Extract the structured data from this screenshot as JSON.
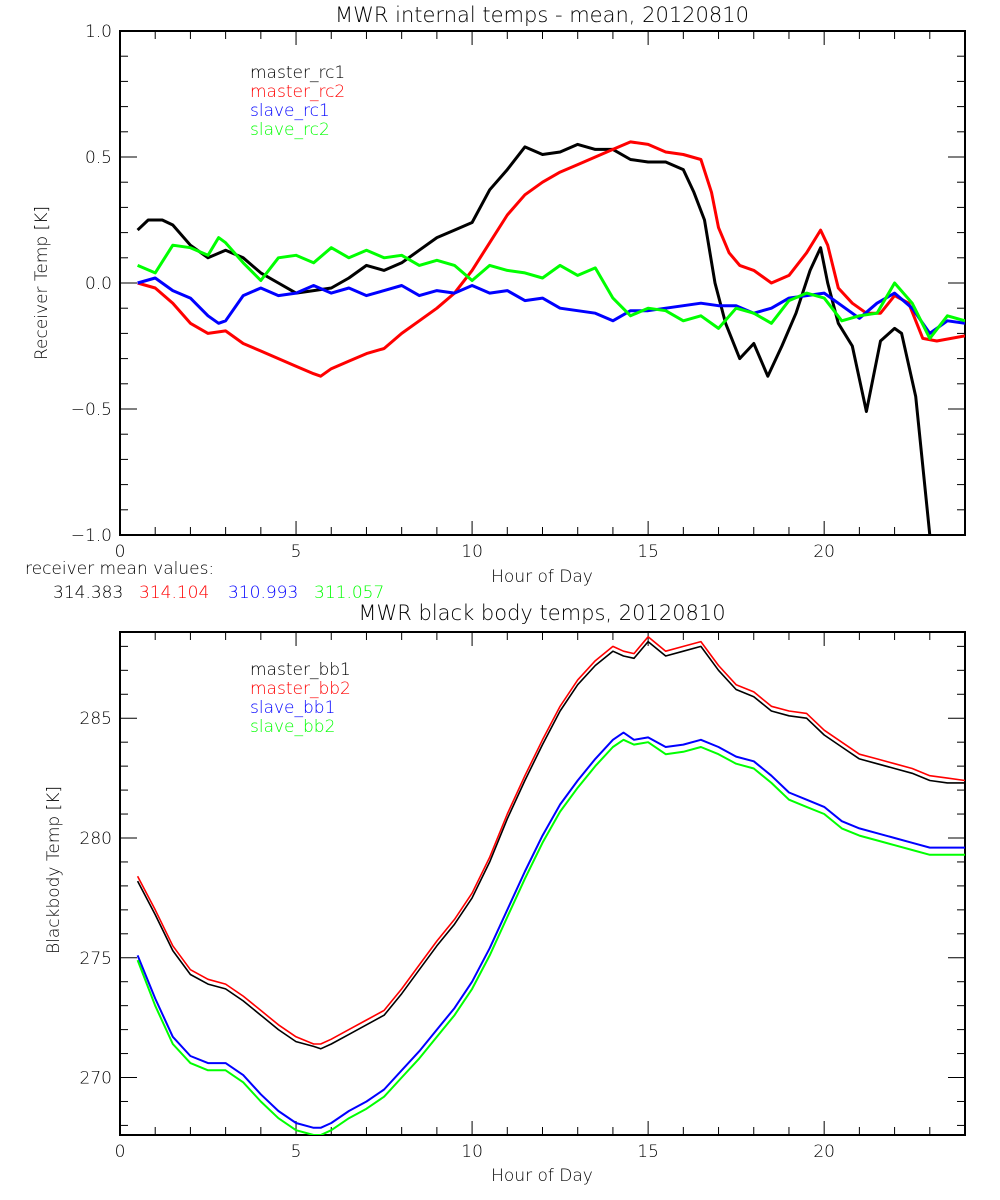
{
  "chart_data": [
    {
      "type": "line",
      "title": "MWR internal temps - mean, 20120810",
      "xlabel": "Hour of Day",
      "ylabel": "Receiver Temp [K]",
      "xlim": [
        0,
        24
      ],
      "ylim": [
        -1.0,
        1.0
      ],
      "xticks": [
        0,
        5,
        10,
        15,
        20
      ],
      "xtick_labels": [
        "0",
        "5",
        "10",
        "15",
        "20"
      ],
      "yticks": [
        -1.0,
        -0.5,
        0.0,
        0.5,
        1.0
      ],
      "ytick_labels": [
        "-1.0",
        "-0.5",
        "0.0",
        "0.5",
        "1.0"
      ],
      "grid": false,
      "legend_position": "top-left",
      "series": [
        {
          "name": "master_rc1",
          "color": "#000000",
          "x": [
            0.5,
            0.8,
            1.2,
            1.5,
            2.0,
            2.5,
            3.0,
            3.5,
            4.0,
            4.5,
            5.0,
            5.5,
            6.0,
            6.5,
            7.0,
            7.5,
            8.0,
            8.5,
            9.0,
            9.5,
            10.0,
            10.5,
            11.0,
            11.5,
            12.0,
            12.5,
            13.0,
            13.5,
            14.0,
            14.5,
            15.0,
            15.5,
            16.0,
            16.3,
            16.6,
            16.9,
            17.2,
            17.6,
            18.0,
            18.4,
            18.8,
            19.2,
            19.6,
            19.9,
            20.1,
            20.4,
            20.8,
            21.2,
            21.6,
            22.0,
            22.2,
            22.6,
            23.0
          ],
          "y": [
            0.21,
            0.25,
            0.25,
            0.23,
            0.15,
            0.1,
            0.13,
            0.1,
            0.04,
            0.0,
            -0.04,
            -0.03,
            -0.02,
            0.02,
            0.07,
            0.05,
            0.08,
            0.13,
            0.18,
            0.21,
            0.24,
            0.37,
            0.45,
            0.54,
            0.51,
            0.52,
            0.55,
            0.53,
            0.53,
            0.49,
            0.48,
            0.48,
            0.45,
            0.36,
            0.25,
            0.0,
            -0.16,
            -0.3,
            -0.24,
            -0.37,
            -0.25,
            -0.12,
            0.05,
            0.14,
            0.0,
            -0.16,
            -0.25,
            -0.51,
            -0.23,
            -0.18,
            -0.2,
            -0.45,
            -1.0
          ]
        },
        {
          "name": "master_rc2",
          "color": "#ff0000",
          "x": [
            0.5,
            1.0,
            1.5,
            2.0,
            2.5,
            3.0,
            3.5,
            4.0,
            4.5,
            5.0,
            5.5,
            5.7,
            6.0,
            6.5,
            7.0,
            7.5,
            8.0,
            8.5,
            9.0,
            9.5,
            10.0,
            10.5,
            11.0,
            11.5,
            12.0,
            12.5,
            13.0,
            13.5,
            14.0,
            14.5,
            15.0,
            15.5,
            16.0,
            16.5,
            16.8,
            17.0,
            17.3,
            17.6,
            18.0,
            18.5,
            19.0,
            19.5,
            19.9,
            20.1,
            20.4,
            20.8,
            21.2,
            21.6,
            22.0,
            22.4,
            22.8,
            23.2,
            24.0
          ],
          "y": [
            0.0,
            -0.02,
            -0.08,
            -0.16,
            -0.2,
            -0.19,
            -0.24,
            -0.27,
            -0.3,
            -0.33,
            -0.36,
            -0.37,
            -0.34,
            -0.31,
            -0.28,
            -0.26,
            -0.2,
            -0.15,
            -0.1,
            -0.04,
            0.05,
            0.16,
            0.27,
            0.35,
            0.4,
            0.44,
            0.47,
            0.5,
            0.53,
            0.56,
            0.55,
            0.52,
            0.51,
            0.49,
            0.36,
            0.22,
            0.12,
            0.07,
            0.05,
            0.0,
            0.03,
            0.12,
            0.21,
            0.15,
            -0.02,
            -0.08,
            -0.12,
            -0.12,
            -0.05,
            -0.08,
            -0.22,
            -0.23,
            -0.21
          ]
        },
        {
          "name": "slave_rc1",
          "color": "#0000ff",
          "x": [
            0.5,
            1.0,
            1.5,
            2.0,
            2.5,
            2.8,
            3.0,
            3.5,
            4.0,
            4.5,
            5.0,
            5.5,
            6.0,
            6.5,
            7.0,
            7.5,
            8.0,
            8.5,
            9.0,
            9.5,
            10.0,
            10.5,
            11.0,
            11.5,
            12.0,
            12.5,
            13.0,
            13.5,
            14.0,
            14.5,
            15.0,
            15.5,
            16.0,
            16.5,
            17.0,
            17.5,
            18.0,
            18.5,
            19.0,
            19.5,
            20.0,
            20.5,
            21.0,
            21.5,
            22.0,
            22.5,
            23.0,
            23.5,
            24.0
          ],
          "y": [
            0.0,
            0.02,
            -0.03,
            -0.06,
            -0.13,
            -0.16,
            -0.15,
            -0.05,
            -0.02,
            -0.05,
            -0.04,
            -0.01,
            -0.04,
            -0.02,
            -0.05,
            -0.03,
            -0.01,
            -0.05,
            -0.03,
            -0.04,
            -0.01,
            -0.04,
            -0.03,
            -0.07,
            -0.06,
            -0.1,
            -0.11,
            -0.12,
            -0.15,
            -0.11,
            -0.11,
            -0.1,
            -0.09,
            -0.08,
            -0.09,
            -0.09,
            -0.12,
            -0.1,
            -0.06,
            -0.05,
            -0.04,
            -0.09,
            -0.14,
            -0.08,
            -0.04,
            -0.1,
            -0.2,
            -0.15,
            -0.16
          ]
        },
        {
          "name": "slave_rc2",
          "color": "#00ff00",
          "x": [
            0.5,
            1.0,
            1.5,
            2.0,
            2.5,
            2.8,
            3.0,
            3.5,
            4.0,
            4.5,
            5.0,
            5.5,
            6.0,
            6.5,
            7.0,
            7.5,
            8.0,
            8.5,
            9.0,
            9.5,
            10.0,
            10.5,
            11.0,
            11.5,
            12.0,
            12.5,
            13.0,
            13.5,
            14.0,
            14.5,
            15.0,
            15.5,
            16.0,
            16.5,
            17.0,
            17.5,
            18.0,
            18.5,
            19.0,
            19.5,
            20.0,
            20.5,
            21.0,
            21.5,
            22.0,
            22.5,
            23.0,
            23.5,
            24.0
          ],
          "y": [
            0.07,
            0.04,
            0.15,
            0.14,
            0.11,
            0.18,
            0.16,
            0.08,
            0.01,
            0.1,
            0.11,
            0.08,
            0.14,
            0.1,
            0.13,
            0.1,
            0.11,
            0.07,
            0.09,
            0.07,
            0.01,
            0.07,
            0.05,
            0.04,
            0.02,
            0.07,
            0.03,
            0.06,
            -0.06,
            -0.13,
            -0.1,
            -0.11,
            -0.15,
            -0.13,
            -0.18,
            -0.1,
            -0.12,
            -0.16,
            -0.07,
            -0.04,
            -0.06,
            -0.15,
            -0.13,
            -0.12,
            0.0,
            -0.08,
            -0.22,
            -0.13,
            -0.15
          ]
        }
      ],
      "annotations": {
        "label": "receiver mean values:",
        "values": [
          {
            "text": "314.383",
            "color": "#000000"
          },
          {
            "text": "314.104",
            "color": "#ff0000"
          },
          {
            "text": "310.993",
            "color": "#0000ff"
          },
          {
            "text": "311.057",
            "color": "#00ff00"
          }
        ]
      }
    },
    {
      "type": "line",
      "title": "MWR black body temps, 20120810",
      "xlabel": "Hour of Day",
      "ylabel": "Blackbody Temp [K]",
      "xlim": [
        0,
        24
      ],
      "ylim": [
        267.6,
        288.6
      ],
      "xticks": [
        0,
        5,
        10,
        15,
        20
      ],
      "xtick_labels": [
        "0",
        "5",
        "10",
        "15",
        "20"
      ],
      "yticks": [
        270,
        275,
        280,
        285
      ],
      "ytick_labels": [
        "270",
        "275",
        "280",
        "285"
      ],
      "grid": false,
      "legend_position": "top-left",
      "series": [
        {
          "name": "master_bb1",
          "color": "#000000",
          "x": [
            0.5,
            1.0,
            1.5,
            2.0,
            2.5,
            3.0,
            3.5,
            4.0,
            4.5,
            5.0,
            5.5,
            5.7,
            6.0,
            6.5,
            7.0,
            7.5,
            8.0,
            8.5,
            9.0,
            9.5,
            10.0,
            10.5,
            11.0,
            11.5,
            12.0,
            12.5,
            13.0,
            13.5,
            14.0,
            14.3,
            14.6,
            15.0,
            15.5,
            16.0,
            16.5,
            17.0,
            17.5,
            18.0,
            18.5,
            19.0,
            19.5,
            20.0,
            20.5,
            21.0,
            21.5,
            22.0,
            22.5,
            23.0,
            23.5,
            24.0
          ],
          "y": [
            278.2,
            276.8,
            275.3,
            274.3,
            273.9,
            273.7,
            273.2,
            272.6,
            272.0,
            271.5,
            271.3,
            271.2,
            271.4,
            271.8,
            272.2,
            272.6,
            273.5,
            274.5,
            275.5,
            276.4,
            277.5,
            279.0,
            280.8,
            282.4,
            283.9,
            285.3,
            286.4,
            287.2,
            287.8,
            287.6,
            287.5,
            288.2,
            287.6,
            287.8,
            288.0,
            287.0,
            286.2,
            285.9,
            285.3,
            285.1,
            285.0,
            284.3,
            283.8,
            283.3,
            283.1,
            282.9,
            282.7,
            282.4,
            282.3,
            282.3
          ]
        },
        {
          "name": "master_bb2",
          "color": "#ff0000",
          "x": [
            0.5,
            1.0,
            1.5,
            2.0,
            2.5,
            3.0,
            3.5,
            4.0,
            4.5,
            5.0,
            5.5,
            5.7,
            6.0,
            6.5,
            7.0,
            7.5,
            8.0,
            8.5,
            9.0,
            9.5,
            10.0,
            10.5,
            11.0,
            11.5,
            12.0,
            12.5,
            13.0,
            13.5,
            14.0,
            14.3,
            14.6,
            15.0,
            15.5,
            16.0,
            16.5,
            17.0,
            17.5,
            18.0,
            18.5,
            19.0,
            19.5,
            20.0,
            20.5,
            21.0,
            21.5,
            22.0,
            22.5,
            23.0,
            23.5,
            24.0
          ],
          "y": [
            278.4,
            277.0,
            275.5,
            274.5,
            274.1,
            273.9,
            273.4,
            272.8,
            272.2,
            271.7,
            271.4,
            271.4,
            271.6,
            272.0,
            272.4,
            272.8,
            273.7,
            274.7,
            275.7,
            276.6,
            277.7,
            279.2,
            281.0,
            282.6,
            284.1,
            285.5,
            286.6,
            287.4,
            288.0,
            287.8,
            287.7,
            288.4,
            287.8,
            288.0,
            288.2,
            287.2,
            286.4,
            286.1,
            285.5,
            285.3,
            285.2,
            284.5,
            284.0,
            283.5,
            283.3,
            283.1,
            282.9,
            282.6,
            282.5,
            282.4
          ]
        },
        {
          "name": "slave_bb1",
          "color": "#0000ff",
          "x": [
            0.5,
            1.0,
            1.5,
            2.0,
            2.5,
            3.0,
            3.5,
            4.0,
            4.5,
            5.0,
            5.5,
            5.7,
            6.0,
            6.5,
            7.0,
            7.5,
            8.0,
            8.5,
            9.0,
            9.5,
            10.0,
            10.5,
            11.0,
            11.5,
            12.0,
            12.5,
            13.0,
            13.5,
            14.0,
            14.3,
            14.6,
            15.0,
            15.5,
            16.0,
            16.5,
            17.0,
            17.5,
            18.0,
            18.5,
            19.0,
            19.5,
            20.0,
            20.5,
            21.0,
            21.5,
            22.0,
            22.5,
            23.0,
            23.5,
            24.0
          ],
          "y": [
            275.1,
            273.3,
            271.7,
            270.9,
            270.6,
            270.6,
            270.1,
            269.3,
            268.6,
            268.1,
            267.9,
            267.9,
            268.1,
            268.6,
            269.0,
            269.5,
            270.3,
            271.1,
            272.0,
            272.9,
            274.0,
            275.4,
            277.0,
            278.6,
            280.1,
            281.4,
            282.4,
            283.3,
            284.1,
            284.4,
            284.1,
            284.2,
            283.8,
            283.9,
            284.1,
            283.8,
            283.4,
            283.2,
            282.6,
            281.9,
            281.6,
            281.3,
            280.7,
            280.4,
            280.2,
            280.0,
            279.8,
            279.6,
            279.6,
            279.6
          ]
        },
        {
          "name": "slave_bb2",
          "color": "#00ff00",
          "x": [
            0.5,
            1.0,
            1.5,
            2.0,
            2.5,
            3.0,
            3.5,
            4.0,
            4.5,
            5.0,
            5.5,
            5.7,
            6.0,
            6.5,
            7.0,
            7.5,
            8.0,
            8.5,
            9.0,
            9.5,
            10.0,
            10.5,
            11.0,
            11.5,
            12.0,
            12.5,
            13.0,
            13.5,
            14.0,
            14.3,
            14.6,
            15.0,
            15.5,
            16.0,
            16.5,
            17.0,
            17.5,
            18.0,
            18.5,
            19.0,
            19.5,
            20.0,
            20.5,
            21.0,
            21.5,
            22.0,
            22.5,
            23.0,
            23.5,
            24.0
          ],
          "y": [
            274.9,
            273.0,
            271.4,
            270.6,
            270.3,
            270.3,
            269.8,
            269.0,
            268.3,
            267.8,
            267.6,
            267.6,
            267.8,
            268.3,
            268.7,
            269.2,
            270.0,
            270.8,
            271.7,
            272.6,
            273.7,
            275.1,
            276.7,
            278.3,
            279.8,
            281.1,
            282.1,
            283.0,
            283.8,
            284.1,
            283.9,
            284.0,
            283.5,
            283.6,
            283.8,
            283.5,
            283.1,
            282.9,
            282.3,
            281.6,
            281.3,
            281.0,
            280.4,
            280.1,
            279.9,
            279.7,
            279.5,
            279.3,
            279.3,
            279.3
          ]
        }
      ]
    }
  ]
}
